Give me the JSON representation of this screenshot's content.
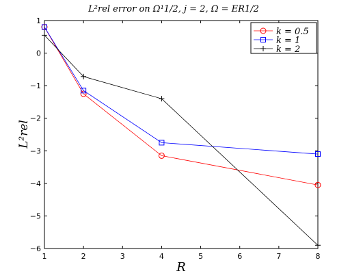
{
  "chart_data": {
    "type": "line",
    "title": "L²rel error on Ω¹1/2, j = 2, Ω = ER1/2",
    "xlabel": "R",
    "ylabel": "L²rel",
    "xlim": [
      1,
      8
    ],
    "ylim": [
      -6,
      1
    ],
    "xticks": [
      "1",
      "2",
      "3",
      "4",
      "5",
      "6",
      "7",
      "8"
    ],
    "yticks": [
      "1",
      "0",
      "−1",
      "−2",
      "−3",
      "−4",
      "−5",
      "−6"
    ],
    "legend_position": "top-right",
    "grid": false,
    "x": [
      1,
      2,
      4,
      8
    ],
    "series": [
      {
        "name": "k = 0.5",
        "color": "#ff0000",
        "marker": "circle",
        "values": [
          0.8,
          -1.25,
          -3.15,
          -4.05
        ]
      },
      {
        "name": "k = 1",
        "color": "#0000ff",
        "marker": "square",
        "values": [
          0.8,
          -1.15,
          -2.75,
          -3.1
        ]
      },
      {
        "name": "k = 2",
        "color": "#000000",
        "marker": "plus",
        "values": [
          0.55,
          -0.72,
          -1.4,
          -5.9
        ]
      }
    ]
  }
}
